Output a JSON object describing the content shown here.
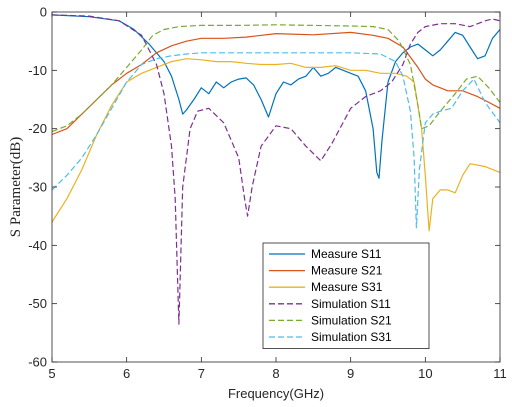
{
  "chart_data": {
    "type": "line",
    "xlabel": "Frequency(GHz)",
    "ylabel": "S Parameter(dB)",
    "xlim": [
      5,
      11
    ],
    "ylim": [
      -60,
      0
    ],
    "xticks": [
      5,
      6,
      7,
      8,
      9,
      10,
      11
    ],
    "yticks": [
      0,
      -10,
      -20,
      -30,
      -40,
      -50,
      -60
    ],
    "grid": false,
    "legend_position": "lower-right",
    "series": [
      {
        "name": "Measure S11",
        "color": "#0072BD",
        "dashed": false,
        "points": [
          [
            5.0,
            -0.5
          ],
          [
            5.5,
            -0.8
          ],
          [
            5.9,
            -1.5
          ],
          [
            6.1,
            -3.0
          ],
          [
            6.3,
            -5.5
          ],
          [
            6.5,
            -8.5
          ],
          [
            6.6,
            -11.0
          ],
          [
            6.7,
            -15.0
          ],
          [
            6.75,
            -17.5
          ],
          [
            6.8,
            -16.8
          ],
          [
            6.9,
            -15.0
          ],
          [
            7.0,
            -13.0
          ],
          [
            7.1,
            -14.0
          ],
          [
            7.2,
            -12.0
          ],
          [
            7.3,
            -13.0
          ],
          [
            7.4,
            -12.0
          ],
          [
            7.5,
            -11.5
          ],
          [
            7.6,
            -11.3
          ],
          [
            7.7,
            -12.5
          ],
          [
            7.8,
            -15.0
          ],
          [
            7.9,
            -18.0
          ],
          [
            8.0,
            -14.0
          ],
          [
            8.1,
            -12.0
          ],
          [
            8.2,
            -12.5
          ],
          [
            8.3,
            -11.5
          ],
          [
            8.4,
            -11.0
          ],
          [
            8.5,
            -9.5
          ],
          [
            8.6,
            -11.0
          ],
          [
            8.7,
            -10.5
          ],
          [
            8.8,
            -9.5
          ],
          [
            8.9,
            -10.0
          ],
          [
            9.0,
            -10.5
          ],
          [
            9.1,
            -11.0
          ],
          [
            9.2,
            -13.5
          ],
          [
            9.3,
            -20.0
          ],
          [
            9.35,
            -27.5
          ],
          [
            9.38,
            -28.5
          ],
          [
            9.42,
            -22.0
          ],
          [
            9.5,
            -12.0
          ],
          [
            9.6,
            -8.5
          ],
          [
            9.7,
            -7.0
          ],
          [
            9.8,
            -6.0
          ],
          [
            9.9,
            -5.5
          ],
          [
            10.0,
            -6.5
          ],
          [
            10.1,
            -7.5
          ],
          [
            10.2,
            -6.5
          ],
          [
            10.3,
            -5.0
          ],
          [
            10.4,
            -3.5
          ],
          [
            10.5,
            -4.0
          ],
          [
            10.6,
            -6.0
          ],
          [
            10.7,
            -8.0
          ],
          [
            10.8,
            -7.5
          ],
          [
            10.9,
            -4.5
          ],
          [
            11.0,
            -3.0
          ]
        ]
      },
      {
        "name": "Measure S21",
        "color": "#D95319",
        "dashed": false,
        "points": [
          [
            5.0,
            -21.0
          ],
          [
            5.2,
            -20.0
          ],
          [
            5.4,
            -17.5
          ],
          [
            5.6,
            -15.0
          ],
          [
            5.8,
            -12.5
          ],
          [
            6.0,
            -10.5
          ],
          [
            6.2,
            -9.0
          ],
          [
            6.4,
            -7.0
          ],
          [
            6.6,
            -5.8
          ],
          [
            6.8,
            -5.0
          ],
          [
            7.0,
            -4.5
          ],
          [
            7.3,
            -4.5
          ],
          [
            7.6,
            -4.3
          ],
          [
            8.0,
            -3.7
          ],
          [
            8.5,
            -3.9
          ],
          [
            9.0,
            -3.5
          ],
          [
            9.3,
            -4.0
          ],
          [
            9.5,
            -4.5
          ],
          [
            9.7,
            -6.0
          ],
          [
            9.9,
            -9.5
          ],
          [
            10.0,
            -11.5
          ],
          [
            10.1,
            -12.5
          ],
          [
            10.2,
            -13.0
          ],
          [
            10.3,
            -13.5
          ],
          [
            10.5,
            -13.5
          ],
          [
            10.7,
            -14.5
          ],
          [
            10.85,
            -15.5
          ],
          [
            11.0,
            -16.5
          ]
        ]
      },
      {
        "name": "Measure S31",
        "color": "#EDB120",
        "dashed": false,
        "points": [
          [
            5.0,
            -36.0
          ],
          [
            5.2,
            -32.0
          ],
          [
            5.4,
            -27.0
          ],
          [
            5.6,
            -21.0
          ],
          [
            5.8,
            -16.0
          ],
          [
            6.0,
            -12.0
          ],
          [
            6.2,
            -10.5
          ],
          [
            6.4,
            -9.5
          ],
          [
            6.6,
            -8.5
          ],
          [
            6.8,
            -8.0
          ],
          [
            7.0,
            -8.2
          ],
          [
            7.2,
            -8.5
          ],
          [
            7.4,
            -8.5
          ],
          [
            7.6,
            -8.8
          ],
          [
            7.8,
            -9.0
          ],
          [
            8.0,
            -9.0
          ],
          [
            8.2,
            -8.8
          ],
          [
            8.4,
            -9.5
          ],
          [
            8.6,
            -9.5
          ],
          [
            8.8,
            -9.2
          ],
          [
            9.0,
            -10.0
          ],
          [
            9.2,
            -10.0
          ],
          [
            9.4,
            -10.5
          ],
          [
            9.6,
            -10.5
          ],
          [
            9.75,
            -11.0
          ],
          [
            9.85,
            -12.0
          ],
          [
            9.95,
            -20.0
          ],
          [
            10.0,
            -28.0
          ],
          [
            10.05,
            -37.5
          ],
          [
            10.1,
            -32.0
          ],
          [
            10.2,
            -30.5
          ],
          [
            10.3,
            -30.5
          ],
          [
            10.4,
            -31.0
          ],
          [
            10.5,
            -28.0
          ],
          [
            10.6,
            -26.0
          ],
          [
            10.8,
            -26.5
          ],
          [
            11.0,
            -27.5
          ]
        ]
      },
      {
        "name": "Simulation S11",
        "color": "#7E2F8E",
        "dashed": true,
        "points": [
          [
            5.0,
            -0.5
          ],
          [
            5.5,
            -0.7
          ],
          [
            5.9,
            -1.5
          ],
          [
            6.2,
            -4.0
          ],
          [
            6.4,
            -9.0
          ],
          [
            6.5,
            -14.0
          ],
          [
            6.6,
            -23.0
          ],
          [
            6.65,
            -32.0
          ],
          [
            6.7,
            -53.5
          ],
          [
            6.75,
            -30.0
          ],
          [
            6.85,
            -20.0
          ],
          [
            6.95,
            -17.0
          ],
          [
            7.1,
            -16.5
          ],
          [
            7.3,
            -19.0
          ],
          [
            7.5,
            -25.0
          ],
          [
            7.58,
            -32.0
          ],
          [
            7.62,
            -35.0
          ],
          [
            7.68,
            -30.0
          ],
          [
            7.8,
            -23.0
          ],
          [
            8.0,
            -19.5
          ],
          [
            8.2,
            -20.0
          ],
          [
            8.4,
            -23.0
          ],
          [
            8.6,
            -25.5
          ],
          [
            8.75,
            -22.5
          ],
          [
            9.0,
            -16.5
          ],
          [
            9.2,
            -14.5
          ],
          [
            9.4,
            -13.5
          ],
          [
            9.55,
            -12.0
          ],
          [
            9.7,
            -9.0
          ],
          [
            9.8,
            -5.5
          ],
          [
            9.9,
            -3.5
          ],
          [
            10.0,
            -2.5
          ],
          [
            10.2,
            -2.0
          ],
          [
            10.4,
            -2.0
          ],
          [
            10.6,
            -2.5
          ],
          [
            10.8,
            -1.5
          ],
          [
            10.9,
            -1.2
          ],
          [
            11.0,
            -1.5
          ]
        ]
      },
      {
        "name": "Simulation S21",
        "color": "#77AC30",
        "dashed": true,
        "points": [
          [
            5.0,
            -20.5
          ],
          [
            5.2,
            -19.5
          ],
          [
            5.4,
            -17.5
          ],
          [
            5.6,
            -15.0
          ],
          [
            5.8,
            -12.5
          ],
          [
            6.0,
            -9.5
          ],
          [
            6.2,
            -6.5
          ],
          [
            6.35,
            -4.0
          ],
          [
            6.5,
            -3.0
          ],
          [
            6.7,
            -2.5
          ],
          [
            7.0,
            -2.3
          ],
          [
            7.5,
            -2.3
          ],
          [
            8.0,
            -2.2
          ],
          [
            8.5,
            -2.3
          ],
          [
            9.0,
            -2.4
          ],
          [
            9.3,
            -2.5
          ],
          [
            9.5,
            -3.0
          ],
          [
            9.65,
            -5.0
          ],
          [
            9.8,
            -9.0
          ],
          [
            9.9,
            -16.0
          ],
          [
            9.95,
            -20.0
          ],
          [
            10.05,
            -19.5
          ],
          [
            10.2,
            -17.0
          ],
          [
            10.4,
            -14.0
          ],
          [
            10.55,
            -11.5
          ],
          [
            10.7,
            -11.0
          ],
          [
            10.85,
            -13.0
          ],
          [
            11.0,
            -15.5
          ]
        ]
      },
      {
        "name": "Simulation S31",
        "color": "#4DBEEE",
        "dashed": true,
        "points": [
          [
            5.0,
            -30.5
          ],
          [
            5.2,
            -28.0
          ],
          [
            5.4,
            -25.0
          ],
          [
            5.6,
            -21.0
          ],
          [
            5.8,
            -16.5
          ],
          [
            6.0,
            -12.0
          ],
          [
            6.2,
            -9.0
          ],
          [
            6.4,
            -8.0
          ],
          [
            6.6,
            -7.5
          ],
          [
            6.8,
            -7.2
          ],
          [
            7.0,
            -7.0
          ],
          [
            7.5,
            -7.0
          ],
          [
            8.0,
            -7.0
          ],
          [
            8.5,
            -7.0
          ],
          [
            9.0,
            -7.0
          ],
          [
            9.4,
            -7.2
          ],
          [
            9.6,
            -8.5
          ],
          [
            9.7,
            -11.0
          ],
          [
            9.8,
            -17.0
          ],
          [
            9.85,
            -25.0
          ],
          [
            9.88,
            -37.0
          ],
          [
            9.92,
            -27.0
          ],
          [
            10.0,
            -19.0
          ],
          [
            10.1,
            -17.5
          ],
          [
            10.2,
            -17.0
          ],
          [
            10.35,
            -16.5
          ],
          [
            10.5,
            -13.5
          ],
          [
            10.65,
            -11.5
          ],
          [
            10.8,
            -15.5
          ],
          [
            11.0,
            -19.0
          ]
        ]
      }
    ]
  }
}
